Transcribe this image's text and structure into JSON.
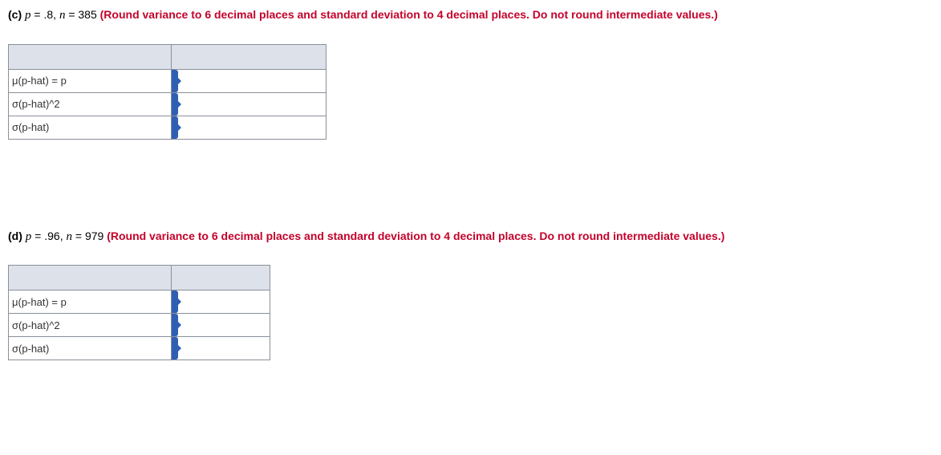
{
  "problems": {
    "c": {
      "label": "(c)",
      "p_var": "p",
      "p_val": " = .8, ",
      "n_var": "n",
      "n_val": " = 385 ",
      "instruction": "(Round variance to 6 decimal places and standard deviation to 4 decimal places. Do not round intermediate values.)",
      "rows": {
        "mu": "μ(p-hat) = p",
        "var": "σ(p-hat)^2",
        "sigma": "σ(p-hat)"
      }
    },
    "d": {
      "label": "(d)",
      "p_var": "p",
      "p_val": " = .96, ",
      "n_var": "n",
      "n_val": " = 979 ",
      "instruction": "(Round variance to 6 decimal places and standard deviation to 4 decimal places. Do not round intermediate values.)",
      "rows": {
        "mu": "μ(p-hat) = p",
        "var": "σ(p-hat)^2",
        "sigma": "σ(p-hat)"
      }
    }
  },
  "colors": {
    "instruction": "#c4022b",
    "tab": "#2f5fb3",
    "header_bg": "#dde1ea",
    "border": "#8a8f99"
  }
}
